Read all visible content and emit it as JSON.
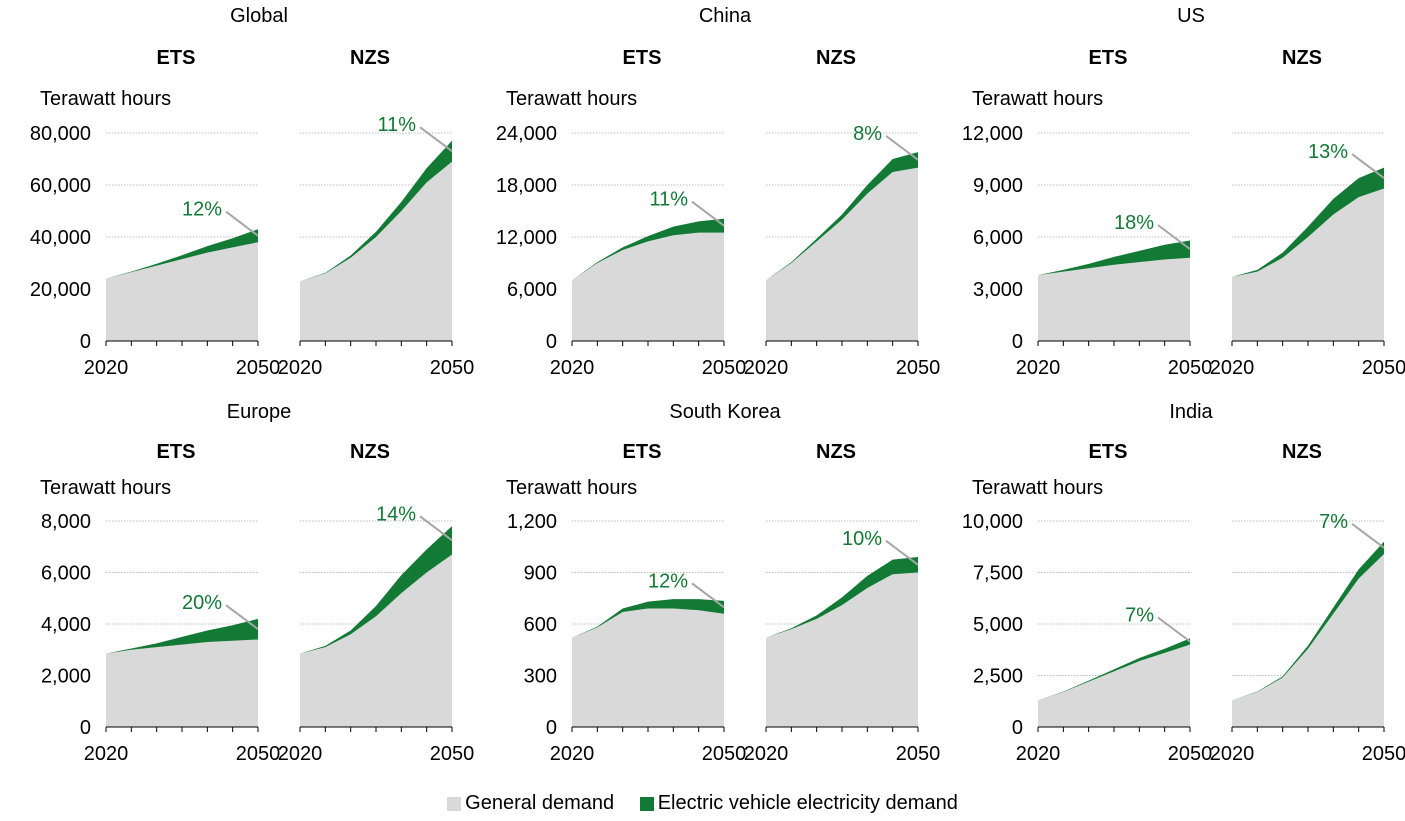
{
  "colors": {
    "general": "#d9d9d9",
    "ev": "#127a35",
    "annotation": "#127a35",
    "leader": "#a6a6a6",
    "grid": "#a6a6a6"
  },
  "legend": [
    {
      "label": "General demand",
      "color": "#d9d9d9"
    },
    {
      "label": "Electric vehicle electricity demand",
      "color": "#127a35"
    }
  ],
  "chart_data": [
    {
      "type": "area",
      "title": "Global",
      "ylabel": "Terawatt hours",
      "ylim": [
        0,
        80000
      ],
      "yticks": [
        "0",
        "20,000",
        "40,000",
        "60,000",
        "80,000"
      ],
      "panels": [
        {
          "name": "ETS",
          "x": [
            2020,
            2025,
            2030,
            2035,
            2040,
            2045,
            2050
          ],
          "general": [
            24000,
            26500,
            29000,
            31500,
            34000,
            36000,
            38000
          ],
          "ev": [
            0,
            200,
            700,
            1500,
            2500,
            3500,
            5000
          ],
          "annotation": "12%",
          "xticks": [
            "2020",
            "2050"
          ]
        },
        {
          "name": "NZS",
          "x": [
            2020,
            2025,
            2030,
            2035,
            2040,
            2045,
            2050
          ],
          "general": [
            23000,
            26000,
            32000,
            40000,
            50000,
            61000,
            69000
          ],
          "ev": [
            0,
            200,
            900,
            2000,
            3500,
            5500,
            8000
          ],
          "annotation": "11%",
          "xticks": [
            "2020",
            "2050"
          ]
        }
      ]
    },
    {
      "type": "area",
      "title": "China",
      "ylabel": "Terawatt hours",
      "ylim": [
        0,
        24000
      ],
      "yticks": [
        "0",
        "6,000",
        "12,000",
        "18,000",
        "24,000"
      ],
      "panels": [
        {
          "name": "ETS",
          "x": [
            2020,
            2025,
            2030,
            2035,
            2040,
            2045,
            2050
          ],
          "general": [
            7000,
            9000,
            10500,
            11500,
            12200,
            12500,
            12500
          ],
          "ev": [
            0,
            100,
            300,
            600,
            1000,
            1300,
            1600
          ],
          "annotation": "11%",
          "xticks": [
            "2020",
            "2050"
          ]
        },
        {
          "name": "NZS",
          "x": [
            2020,
            2025,
            2030,
            2035,
            2040,
            2045,
            2050
          ],
          "general": [
            7000,
            9000,
            11500,
            14000,
            17000,
            19500,
            20000
          ],
          "ev": [
            0,
            100,
            300,
            600,
            1000,
            1500,
            1800
          ],
          "annotation": "8%",
          "xticks": [
            "2020",
            "2050"
          ]
        }
      ]
    },
    {
      "type": "area",
      "title": "US",
      "ylabel": "Terawatt hours",
      "ylim": [
        0,
        12000
      ],
      "yticks": [
        "0",
        "3,000",
        "6,000",
        "9,000",
        "12,000"
      ],
      "panels": [
        {
          "name": "ETS",
          "x": [
            2020,
            2025,
            2030,
            2035,
            2040,
            2045,
            2050
          ],
          "general": [
            3800,
            4000,
            4200,
            4400,
            4550,
            4700,
            4800
          ],
          "ev": [
            0,
            100,
            250,
            450,
            650,
            850,
            1000
          ],
          "annotation": "18%",
          "xticks": [
            "2020",
            "2050"
          ]
        },
        {
          "name": "NZS",
          "x": [
            2020,
            2025,
            2030,
            2035,
            2040,
            2045,
            2050
          ],
          "general": [
            3700,
            4000,
            4800,
            6000,
            7300,
            8300,
            8800
          ],
          "ev": [
            0,
            100,
            300,
            600,
            900,
            1100,
            1200
          ],
          "annotation": "13%",
          "xticks": [
            "2020",
            "2050"
          ]
        }
      ]
    },
    {
      "type": "area",
      "title": "Europe",
      "ylabel": "Terawatt hours",
      "ylim": [
        0,
        8000
      ],
      "yticks": [
        "0",
        "2,000",
        "4,000",
        "6,000",
        "8,000"
      ],
      "panels": [
        {
          "name": "ETS",
          "x": [
            2020,
            2025,
            2030,
            2035,
            2040,
            2045,
            2050
          ],
          "general": [
            2850,
            3000,
            3100,
            3200,
            3300,
            3350,
            3400
          ],
          "ev": [
            0,
            50,
            150,
            300,
            450,
            600,
            800
          ],
          "annotation": "20%",
          "xticks": [
            "2020",
            "2050"
          ]
        },
        {
          "name": "NZS",
          "x": [
            2020,
            2025,
            2030,
            2035,
            2040,
            2045,
            2050
          ],
          "general": [
            2850,
            3100,
            3600,
            4300,
            5200,
            6000,
            6700
          ],
          "ev": [
            0,
            50,
            150,
            400,
            700,
            900,
            1100
          ],
          "annotation": "14%",
          "xticks": [
            "2020",
            "2050"
          ]
        }
      ]
    },
    {
      "type": "area",
      "title": "South Korea",
      "ylabel": "Terawatt hours",
      "ylim": [
        0,
        1200
      ],
      "yticks": [
        "0",
        "300",
        "600",
        "900",
        "1,200"
      ],
      "panels": [
        {
          "name": "ETS",
          "x": [
            2020,
            2025,
            2030,
            2035,
            2040,
            2045,
            2050
          ],
          "general": [
            520,
            580,
            670,
            690,
            690,
            680,
            660
          ],
          "ev": [
            0,
            5,
            20,
            40,
            55,
            65,
            75
          ],
          "annotation": "12%",
          "xticks": [
            "2020",
            "2050"
          ]
        },
        {
          "name": "NZS",
          "x": [
            2020,
            2025,
            2030,
            2035,
            2040,
            2045,
            2050
          ],
          "general": [
            520,
            570,
            630,
            710,
            810,
            890,
            900
          ],
          "ev": [
            0,
            5,
            20,
            45,
            70,
            85,
            90
          ],
          "annotation": "10%",
          "xticks": [
            "2020",
            "2050"
          ]
        }
      ]
    },
    {
      "type": "area",
      "title": "India",
      "ylabel": "Terawatt hours",
      "ylim": [
        0,
        10000
      ],
      "yticks": [
        "0",
        "2,500",
        "5,000",
        "7,500",
        "10,000"
      ],
      "panels": [
        {
          "name": "ETS",
          "x": [
            2020,
            2025,
            2030,
            2035,
            2040,
            2045,
            2050
          ],
          "general": [
            1300,
            1700,
            2200,
            2700,
            3200,
            3600,
            4000
          ],
          "ev": [
            0,
            20,
            50,
            100,
            150,
            200,
            300
          ],
          "annotation": "7%",
          "xticks": [
            "2020",
            "2050"
          ]
        },
        {
          "name": "NZS",
          "x": [
            2020,
            2025,
            2030,
            2035,
            2040,
            2045,
            2050
          ],
          "general": [
            1300,
            1700,
            2400,
            3800,
            5500,
            7200,
            8400
          ],
          "ev": [
            0,
            20,
            60,
            150,
            300,
            450,
            600
          ],
          "annotation": "7%",
          "xticks": [
            "2020",
            "2050"
          ]
        }
      ]
    }
  ]
}
